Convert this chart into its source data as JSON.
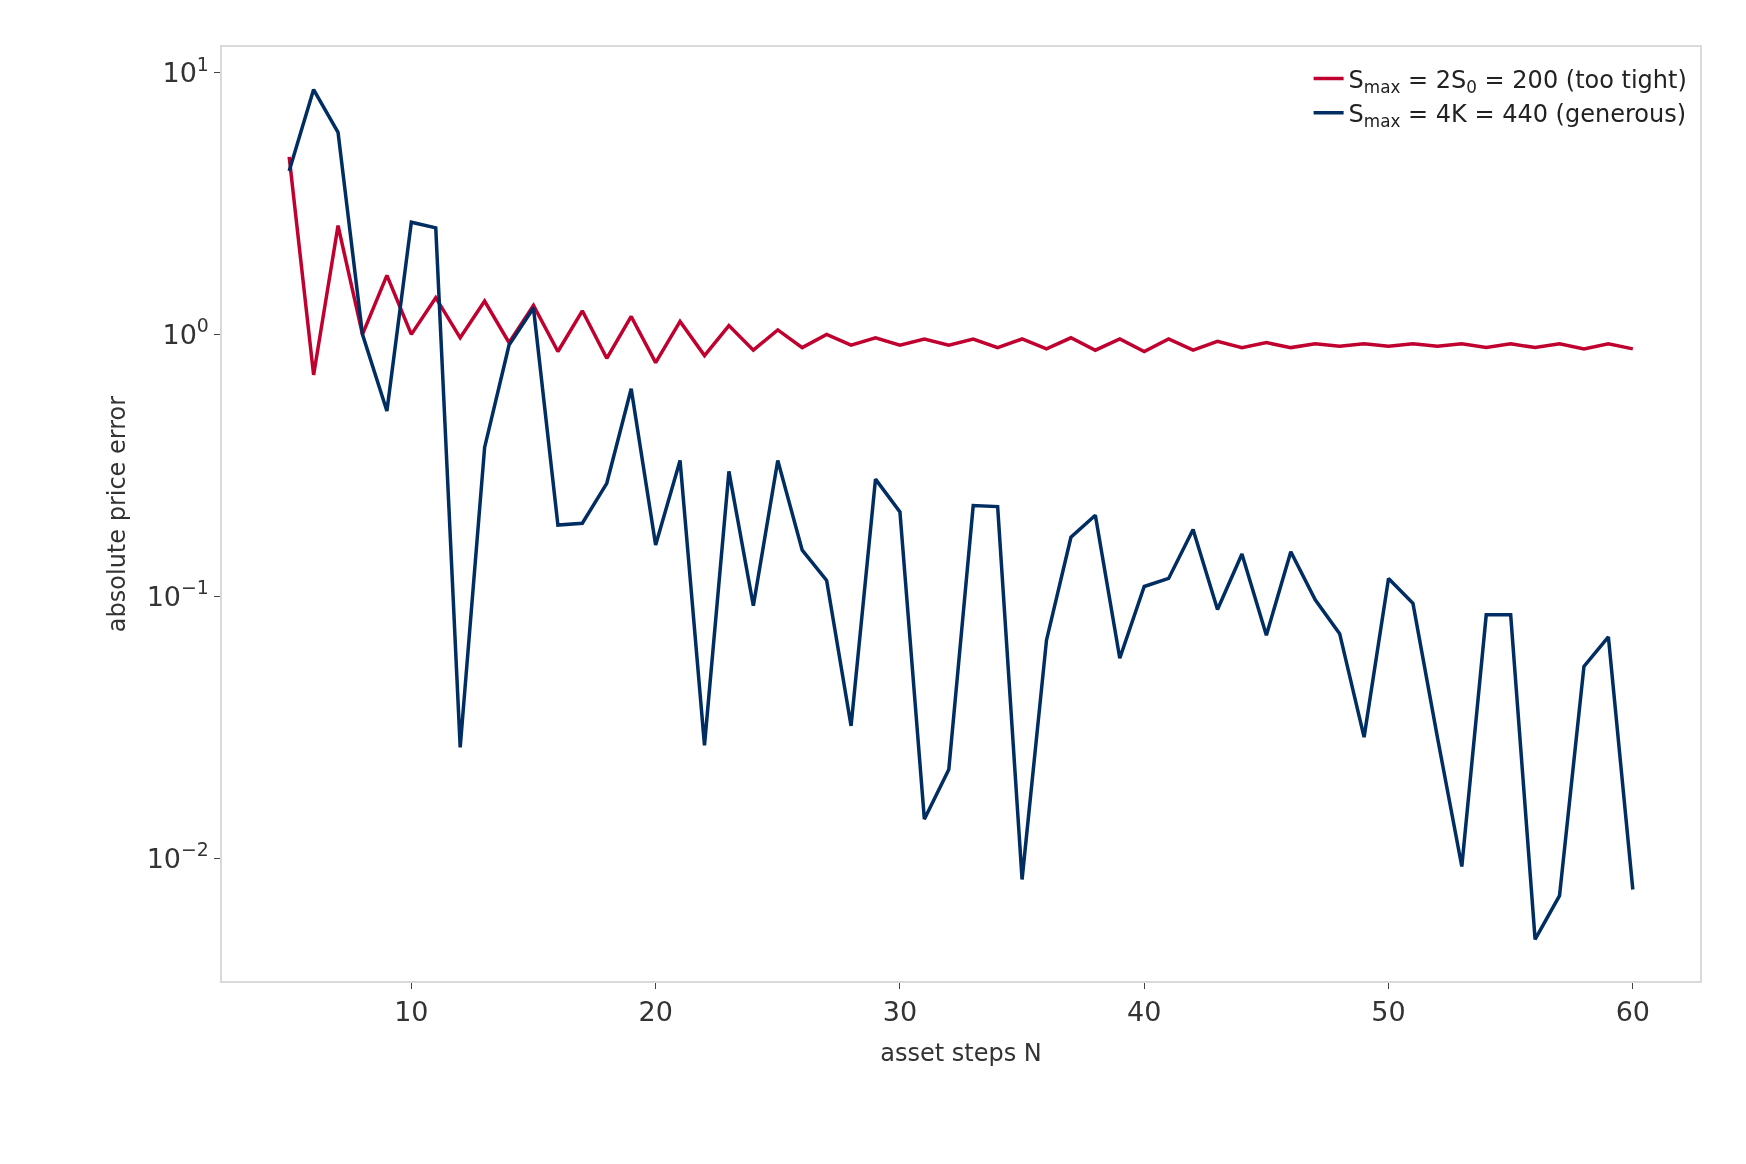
{
  "chart_data": {
    "type": "line",
    "xlabel": "asset steps N",
    "ylabel": "absolute price error",
    "x": [
      5,
      6,
      7,
      8,
      9,
      10,
      11,
      12,
      13,
      14,
      15,
      16,
      17,
      18,
      19,
      20,
      21,
      22,
      23,
      24,
      25,
      26,
      27,
      28,
      29,
      30,
      31,
      32,
      33,
      34,
      35,
      36,
      37,
      38,
      39,
      40,
      41,
      42,
      43,
      44,
      45,
      46,
      47,
      48,
      49,
      50,
      51,
      52,
      53,
      54,
      55,
      56,
      57,
      58,
      59,
      60
    ],
    "series": [
      {
        "name": "S$_{max}$ = 2S$_{0}$ = 200 (too tight)",
        "color": "#c0002f",
        "values": [
          4.76,
          0.7,
          2.6,
          1.0,
          1.68,
          1.0,
          1.38,
          0.97,
          1.34,
          0.93,
          1.29,
          0.86,
          1.23,
          0.81,
          1.17,
          0.78,
          1.12,
          0.83,
          1.08,
          0.87,
          1.04,
          0.89,
          1.0,
          0.91,
          0.97,
          0.91,
          0.96,
          0.91,
          0.96,
          0.89,
          0.96,
          0.88,
          0.97,
          0.87,
          0.96,
          0.86,
          0.96,
          0.87,
          0.94,
          0.89,
          0.93,
          0.89,
          0.92,
          0.9,
          0.92,
          0.9,
          0.92,
          0.9,
          0.92,
          0.89,
          0.92,
          0.89,
          0.92,
          0.88,
          0.92,
          0.88
        ]
      },
      {
        "name": "S$_{max}$ = 4K = 440 (generous)",
        "color": "#002d62",
        "values": [
          4.2,
          8.6,
          5.9,
          1.0,
          0.51,
          2.68,
          2.55,
          0.0265,
          0.37,
          0.91,
          1.26,
          0.187,
          0.19,
          0.27,
          0.62,
          0.157,
          0.33,
          0.027,
          0.3,
          0.092,
          0.33,
          0.15,
          0.115,
          0.032,
          0.28,
          0.21,
          0.0141,
          0.0218,
          0.222,
          0.22,
          0.0083,
          0.068,
          0.168,
          0.204,
          0.058,
          0.109,
          0.117,
          0.18,
          0.089,
          0.145,
          0.071,
          0.148,
          0.097,
          0.072,
          0.029,
          0.117,
          0.094,
          0.029,
          0.0093,
          0.085,
          0.085,
          0.0049,
          0.0072,
          0.054,
          0.07,
          0.0076
        ]
      }
    ],
    "xlim": [
      2.25,
      62.75
    ],
    "xticks": [
      10,
      20,
      30,
      40,
      50,
      60
    ],
    "ylim": [
      0.0034,
      12.5
    ],
    "log": true,
    "yticks": [
      {
        "value": 0.01,
        "label": "10$^{−2}$"
      },
      {
        "value": 0.1,
        "label": "10$^{−1}$"
      },
      {
        "value": 1,
        "label": "10$^{0}$"
      },
      {
        "value": 10,
        "label": "10$^{1}$"
      }
    ],
    "grid": false,
    "legend": "top right",
    "marker": "none",
    "line_style": "solid"
  }
}
